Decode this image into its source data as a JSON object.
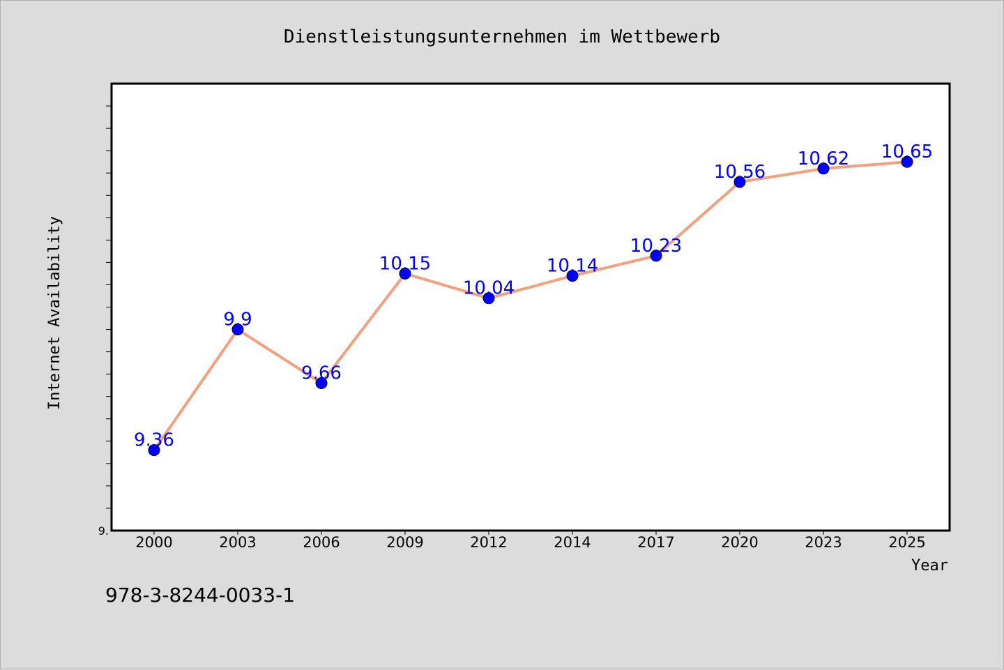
{
  "footer_text": "978-3-8244-0033-1",
  "chart_data": {
    "type": "line",
    "title": "Dienstleistungsunternehmen im Wettbewerb",
    "xlabel": "Year",
    "ylabel": "Internet Availability",
    "categories": [
      "2000",
      "2003",
      "2006",
      "2009",
      "2012",
      "2014",
      "2017",
      "2020",
      "2023",
      "2025"
    ],
    "series": [
      {
        "values": [
          9.36,
          9.9,
          9.66,
          10.15,
          10.04,
          10.14,
          10.23,
          10.56,
          10.62,
          10.65
        ],
        "line_color": "#f4a07f",
        "marker_color": "#0000ff"
      }
    ],
    "data_labels": [
      "9.36",
      "9.9",
      "9.66",
      "10.15",
      "10.04",
      "10.14",
      "10.23",
      "10.56",
      "10.62",
      "10.65"
    ],
    "y_tick_label": "9.",
    "ylim": [
      9.0,
      11.0
    ],
    "grid": false,
    "legend": "none"
  }
}
